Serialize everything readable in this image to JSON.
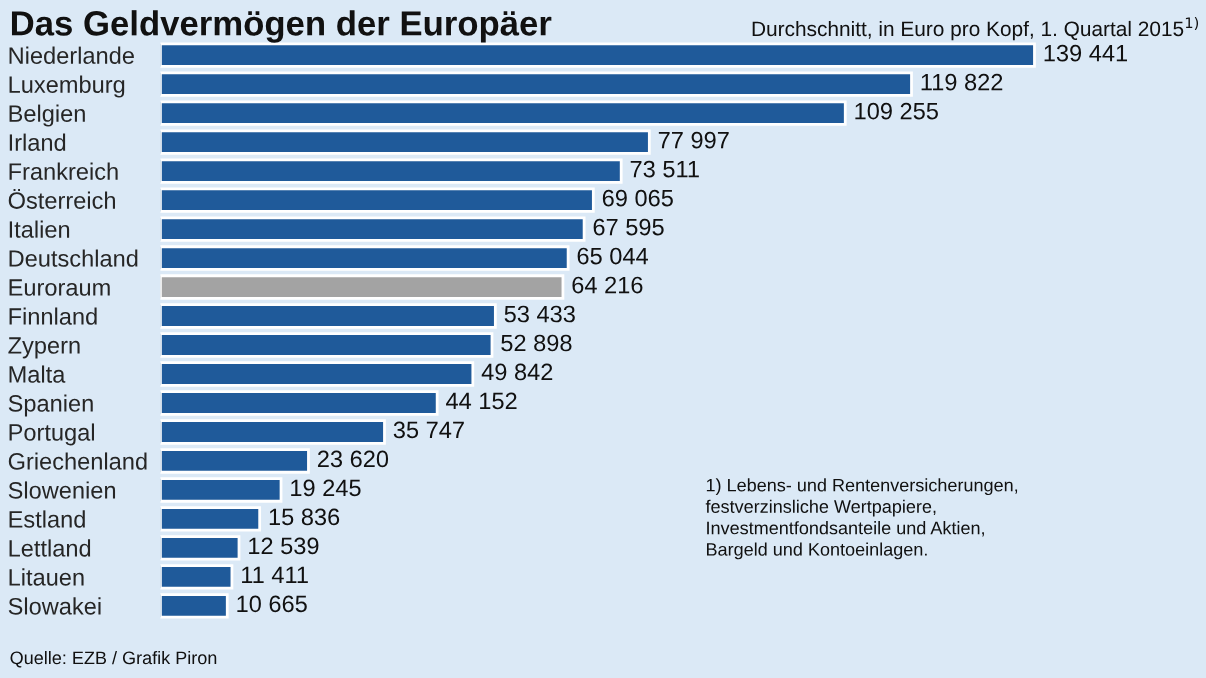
{
  "chart_data": {
    "type": "bar",
    "orientation": "horizontal",
    "title": "Das Geldvermögen der Europäer",
    "subtitle": "Durchschnitt, in Euro pro Kopf, 1. Quartal 2015$^{1)}$",
    "categories": [
      "Niederlande",
      "Luxemburg",
      "Belgien",
      "Irland",
      "Frankreich",
      "Österreich",
      "Italien",
      "Deutschland",
      "Euroraum",
      "Finnland",
      "Zypern",
      "Malta",
      "Spanien",
      "Portugal",
      "Griechenland",
      "Slowenien",
      "Estland",
      "Lettland",
      "Litauen",
      "Slowakei"
    ],
    "values": [
      139441,
      119822,
      109255,
      77997,
      73511,
      69065,
      67595,
      65044,
      64216,
      53433,
      52898,
      49842,
      44152,
      35747,
      23620,
      19245,
      15836,
      12539,
      11411,
      10665
    ],
    "value_labels": [
      "139 441",
      "119 822",
      "109 255",
      "77 997",
      "73 511",
      "69 065",
      "67 595",
      "65 044",
      "64 216",
      "53 433",
      "52 898",
      "49 842",
      "44 152",
      "35 747",
      "23 620",
      "19 245",
      "15 836",
      "12 539",
      "11 411",
      "10 665"
    ],
    "colors": [
      "#1f5a9a",
      "#1f5a9a",
      "#1f5a9a",
      "#1f5a9a",
      "#1f5a9a",
      "#1f5a9a",
      "#1f5a9a",
      "#1f5a9a",
      "#a3a3a3",
      "#1f5a9a",
      "#1f5a9a",
      "#1f5a9a",
      "#1f5a9a",
      "#1f5a9a",
      "#1f5a9a",
      "#1f5a9a",
      "#1f5a9a",
      "#1f5a9a",
      "#1f5a9a",
      "#1f5a9a"
    ],
    "annotations": [
      "1) Lebens- und Rentenversicherungen,\nfestverzinsliche Wertpapiere,\nInvestmentfondsanteile und Aktien,\nBargeld und Kontoeinlagen.",
      "Quelle: EZB / Grafik Piron"
    ]
  }
}
